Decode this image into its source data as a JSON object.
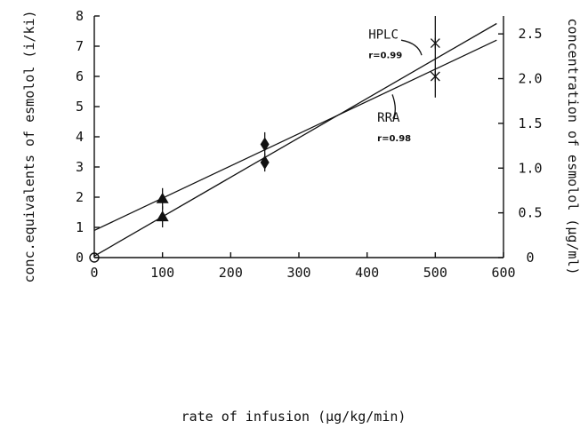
{
  "chart_data": {
    "type": "scatter",
    "xlabel": "rate of infusion (µg/kg/min)",
    "ylabel": "conc.equivalents of esmolol (i/ki)",
    "y2label": "concentration of esmolol (µg/ml)",
    "xlim": [
      0,
      600
    ],
    "ylim": [
      0,
      8
    ],
    "y2lim": [
      0,
      2.7
    ],
    "x_ticks": [
      "0",
      "100",
      "200",
      "300",
      "400",
      "500",
      "600"
    ],
    "y_ticks": [
      "0",
      "1",
      "2",
      "3",
      "4",
      "5",
      "6",
      "7",
      "8"
    ],
    "y2_ticks": [
      "0",
      "0.5",
      "1.0",
      "1.5",
      "2.0",
      "2.5"
    ],
    "grid": false,
    "series": [
      {
        "name": "RRA",
        "marker": "triangle",
        "points": [
          {
            "x": 100,
            "y": 1.95,
            "err": 0.35
          },
          {
            "x": 100,
            "y": 1.35,
            "err": 0.35
          }
        ]
      },
      {
        "name": "RRA",
        "marker": "diamond",
        "points": [
          {
            "x": 250,
            "y": 3.75,
            "err": 0.4
          },
          {
            "x": 250,
            "y": 3.15,
            "err": 0.3
          }
        ]
      },
      {
        "name": "HPLC",
        "marker": "asterisk",
        "points": [
          {
            "x": 500,
            "y": 7.1,
            "err": 0.0
          },
          {
            "x": 500,
            "y": 6.0,
            "err": 0.0
          }
        ],
        "bar_range": [
          5.3,
          8.0
        ]
      },
      {
        "name": "",
        "marker": "open-circle",
        "points": [
          {
            "x": 0,
            "y": 0,
            "err": 0
          }
        ]
      }
    ],
    "fit_lines": [
      {
        "name": "RRA",
        "x": [
          0,
          590
        ],
        "y": [
          0.9,
          7.2
        ]
      },
      {
        "name": "HPLC",
        "x": [
          0,
          590
        ],
        "y": [
          0.05,
          7.75
        ]
      }
    ],
    "annotations": [
      {
        "text": "HPLC",
        "x": 402,
        "y": 7.25
      },
      {
        "text": "r=0.99",
        "x": 402,
        "y": 6.6
      },
      {
        "text": "RRA",
        "x": 415,
        "y": 4.5
      },
      {
        "text": "r=0.98",
        "x": 415,
        "y": 3.85
      }
    ]
  }
}
